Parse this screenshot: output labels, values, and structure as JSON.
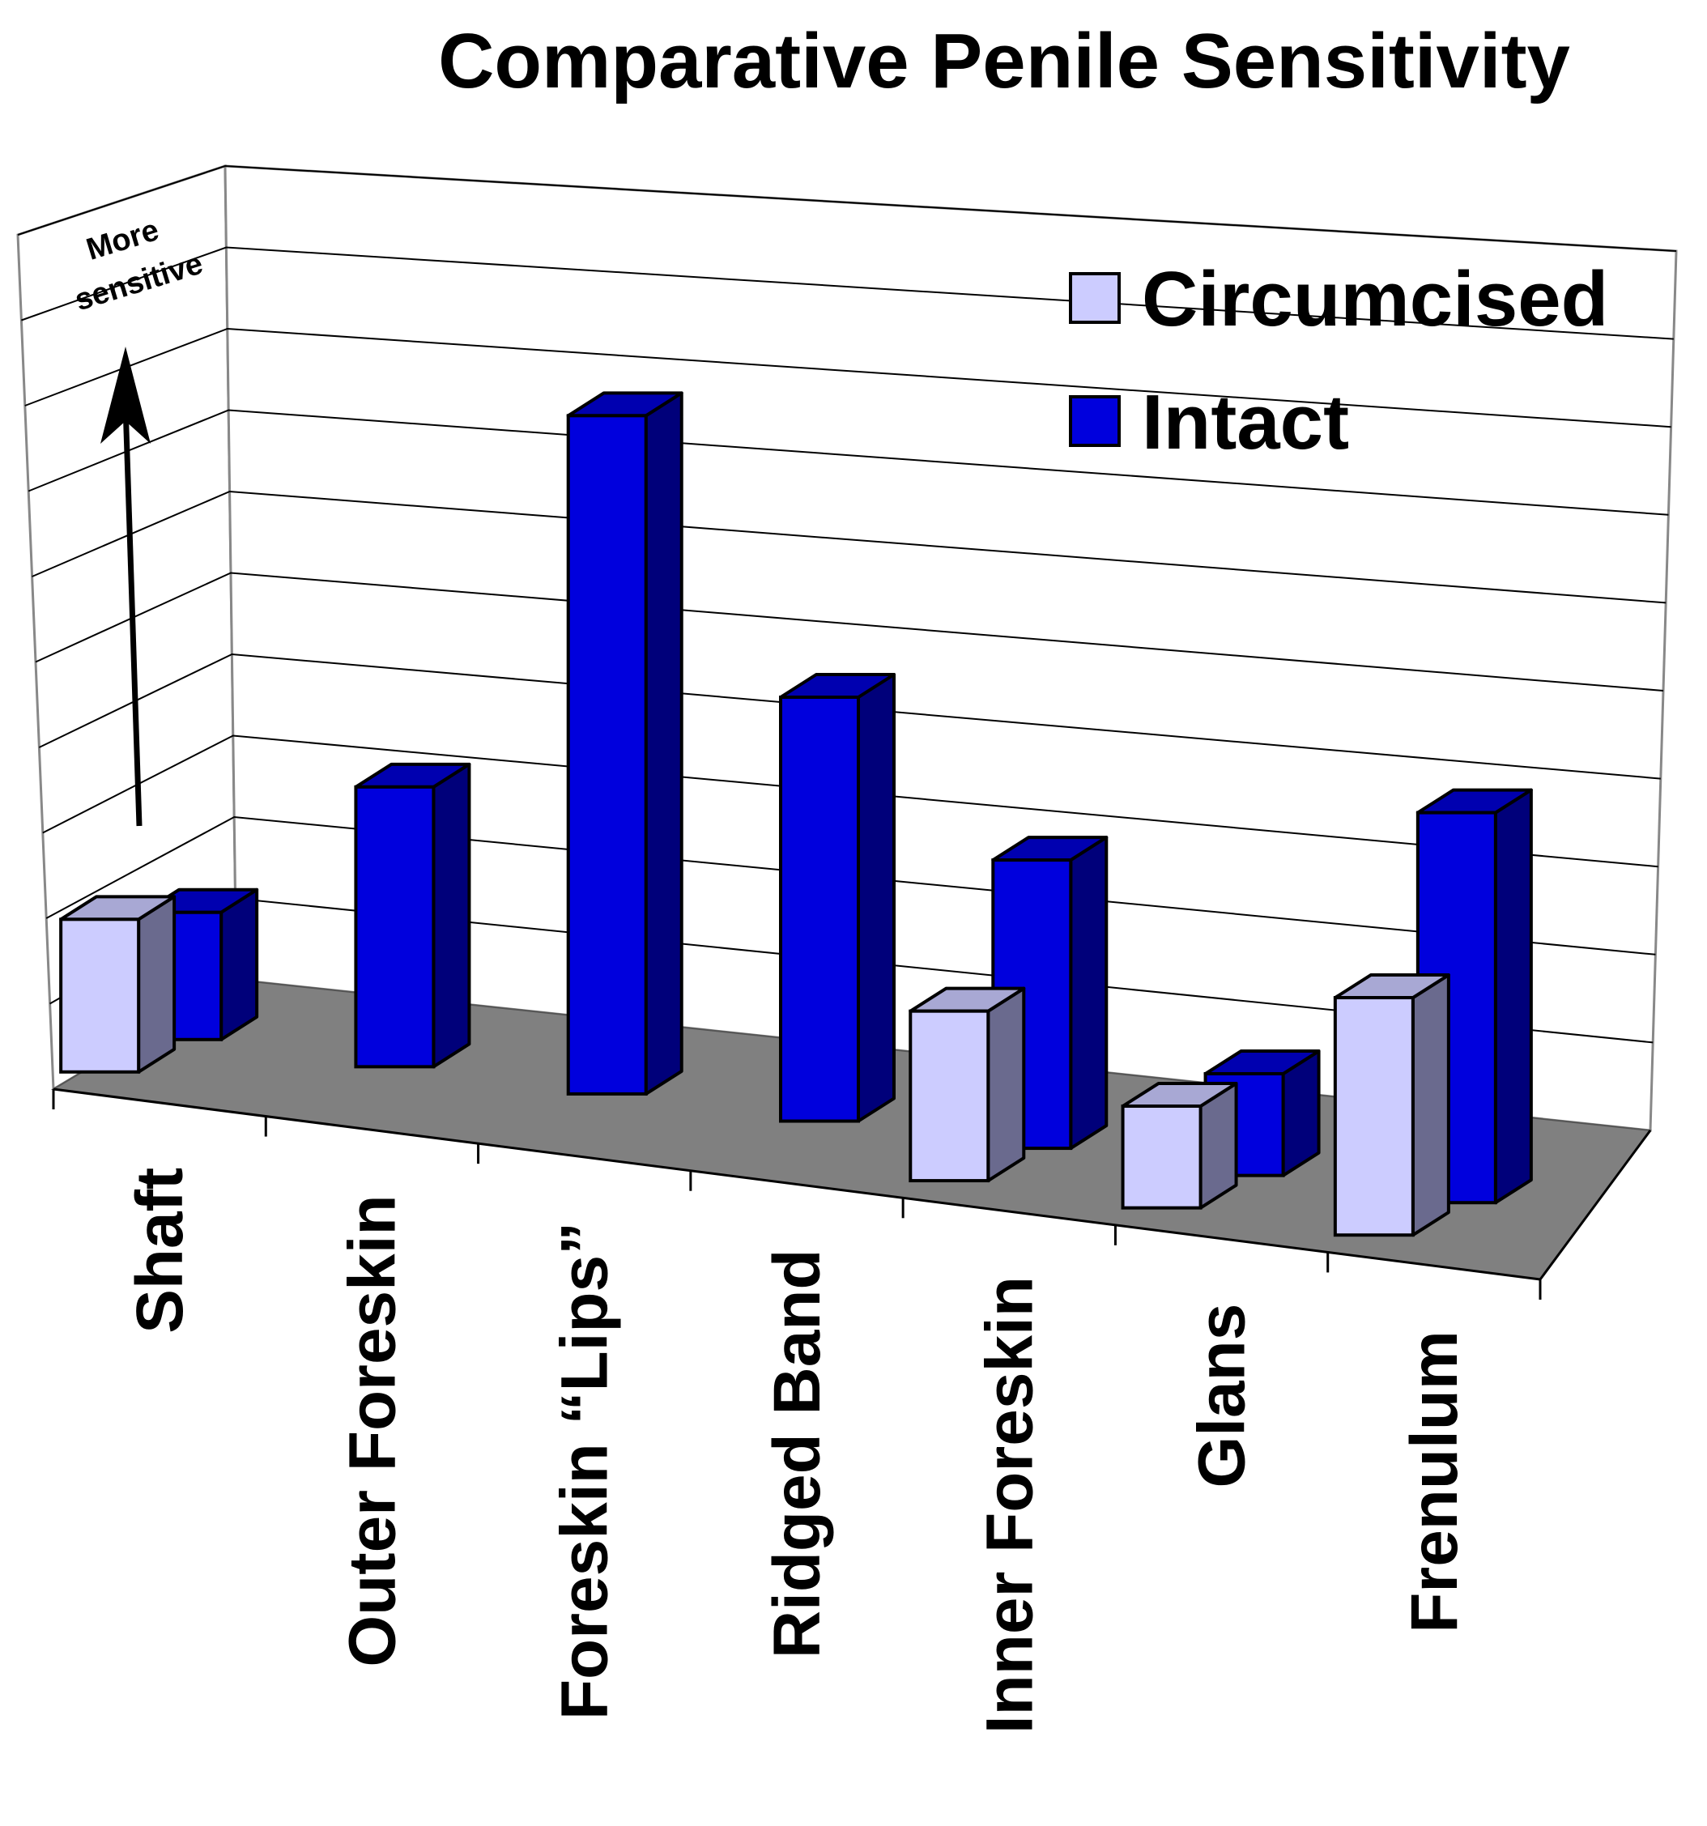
{
  "chart_data": {
    "type": "bar",
    "title": "Comparative Penile Sensitivity",
    "categories": [
      "Shaft",
      "Outer Foreskin",
      "Foreskin “Lips”",
      "Ridged Band",
      "Inner Foreskin",
      "Glans",
      "Frenulum"
    ],
    "series": [
      {
        "name": "Circumcised",
        "color": "#ccccff",
        "values": [
          1.8,
          null,
          null,
          null,
          2.0,
          1.2,
          2.8
        ]
      },
      {
        "name": "Intact",
        "color": "#0000dd",
        "values": [
          1.5,
          3.3,
          8.0,
          5.0,
          3.4,
          1.2,
          4.6
        ]
      }
    ],
    "ylim": [
      0,
      10
    ],
    "xlabel": "",
    "ylabel": "",
    "grid": true,
    "legend": "top-right",
    "annotation": {
      "line1": "More",
      "line2": "sensitive"
    }
  }
}
